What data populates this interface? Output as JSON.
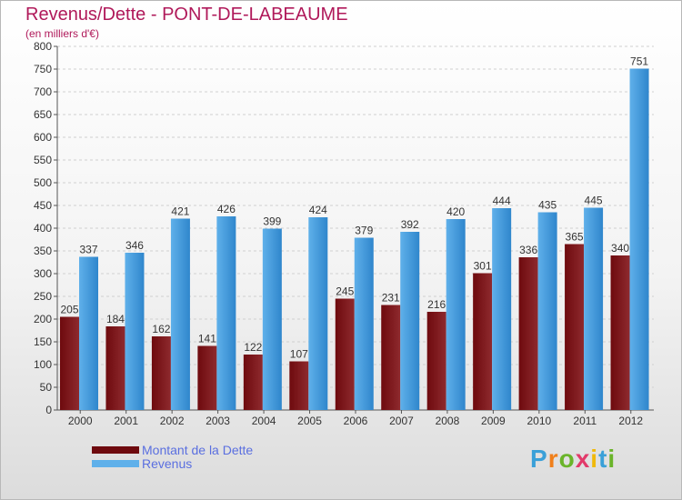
{
  "header": {
    "title": "Revenus/Dette - PONT-DE-LABEAUME",
    "subtitle": "(en milliers d'€)"
  },
  "colors": {
    "dette": "#6e0a0e",
    "dette_light": "#8e2a2e",
    "revenus": "#2f86cc",
    "revenus_light": "#5fb0ea",
    "text": "#333333"
  },
  "logo": {
    "text": "Proxiti",
    "letter_colors": [
      "#3aa0d8",
      "#f07f1a",
      "#6ab42a",
      "#e23a6a",
      "#f0b90b",
      "#3aa0d8",
      "#6ab42a"
    ]
  },
  "chart_data": {
    "type": "bar",
    "categories": [
      "2000",
      "2001",
      "2002",
      "2003",
      "2004",
      "2005",
      "2006",
      "2007",
      "2008",
      "2009",
      "2010",
      "2011",
      "2012"
    ],
    "series": [
      {
        "name": "Montant de la Dette",
        "values": [
          205,
          184,
          162,
          141,
          122,
          107,
          245,
          231,
          216,
          301,
          336,
          365,
          340
        ],
        "labels": [
          "205",
          "184",
          "162",
          "141",
          "122",
          "107",
          "245",
          "231",
          "216",
          "301",
          "336",
          "365",
          "340"
        ]
      },
      {
        "name": "Revenus",
        "values": [
          337,
          346,
          421,
          426,
          399,
          424,
          379,
          392,
          420,
          444,
          435,
          445,
          751
        ],
        "labels": [
          "337",
          "346",
          "421",
          "426",
          "399",
          "424",
          "379",
          "392",
          "420",
          "444",
          "435",
          "445",
          "751"
        ]
      }
    ],
    "ylim": [
      0,
      800
    ],
    "yticks": [
      0,
      50,
      100,
      150,
      200,
      250,
      300,
      350,
      400,
      450,
      500,
      550,
      600,
      650,
      700,
      750,
      800
    ],
    "ytick_labels": [
      "0",
      "50",
      "100",
      "150",
      "200",
      "250",
      "300",
      "350",
      "400",
      "450",
      "500",
      "550",
      "600",
      "650",
      "700",
      "750",
      "800"
    ],
    "grid": true,
    "legend_position": "bottom-left"
  }
}
